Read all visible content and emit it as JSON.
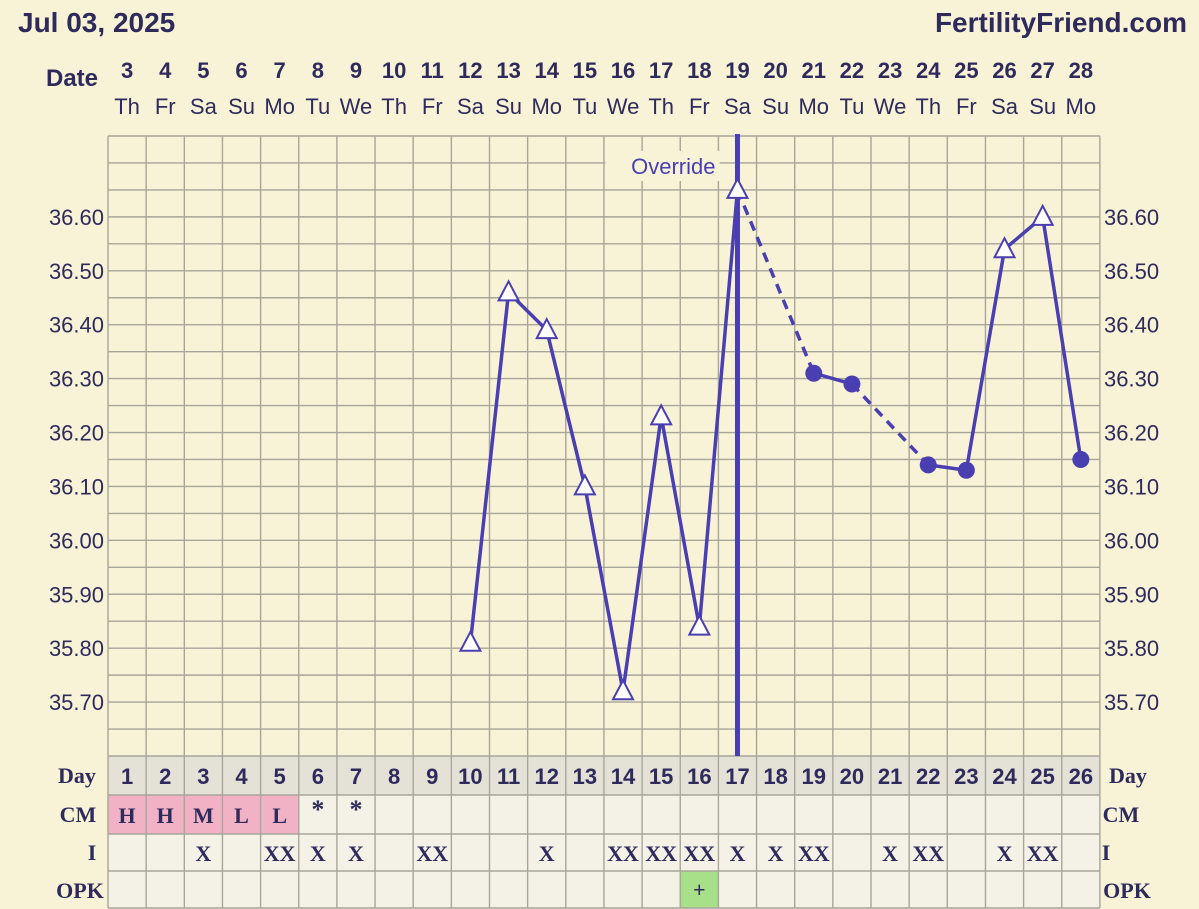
{
  "header": {
    "date": "Jul 03, 2025",
    "brand": "FertilityFriend.com"
  },
  "colors": {
    "background": "#f8f3d6",
    "grid": "#a8a59a",
    "line": "#4a3fb0",
    "text": "#2e2a5c",
    "cm_highlight": "#f0b2c4",
    "opk_positive": "#a8e08a",
    "cell_bg": "#f4f2e6"
  },
  "chart_data": {
    "type": "line",
    "y_axis": {
      "min": 35.6,
      "max": 36.75,
      "ticks": [
        "36.60",
        "36.50",
        "36.40",
        "36.30",
        "36.20",
        "36.10",
        "36.00",
        "35.90",
        "35.80",
        "35.70"
      ],
      "tick_values": [
        36.6,
        36.5,
        36.4,
        36.3,
        36.2,
        36.1,
        36.0,
        35.9,
        35.8,
        35.7
      ]
    },
    "row_labels": {
      "date": "Date",
      "day": "Day",
      "cm": "CM",
      "i": "I",
      "opk": "OPK"
    },
    "dates": [
      "3",
      "4",
      "5",
      "6",
      "7",
      "8",
      "9",
      "10",
      "11",
      "12",
      "13",
      "14",
      "15",
      "16",
      "17",
      "18",
      "19",
      "20",
      "21",
      "22",
      "23",
      "24",
      "25",
      "26",
      "27",
      "28"
    ],
    "weekdays": [
      "Th",
      "Fr",
      "Sa",
      "Su",
      "Mo",
      "Tu",
      "We",
      "Th",
      "Fr",
      "Sa",
      "Su",
      "Mo",
      "Tu",
      "We",
      "Th",
      "Fr",
      "Sa",
      "Su",
      "Mo",
      "Tu",
      "We",
      "Th",
      "Fr",
      "Sa",
      "Su",
      "Mo"
    ],
    "cycle_days": [
      "1",
      "2",
      "3",
      "4",
      "5",
      "6",
      "7",
      "8",
      "9",
      "10",
      "11",
      "12",
      "13",
      "14",
      "15",
      "16",
      "17",
      "18",
      "19",
      "20",
      "21",
      "22",
      "23",
      "24",
      "25",
      "26"
    ],
    "temperatures": [
      null,
      null,
      null,
      null,
      null,
      null,
      null,
      null,
      null,
      35.81,
      36.46,
      36.39,
      36.1,
      35.72,
      36.23,
      35.84,
      36.65,
      null,
      36.31,
      36.29,
      null,
      36.14,
      36.13,
      36.54,
      36.6,
      36.15
    ],
    "markers": [
      "",
      "",
      "",
      "",
      "",
      "",
      "",
      "",
      "",
      "triangle",
      "triangle",
      "triangle",
      "triangle",
      "triangle",
      "triangle",
      "triangle",
      "triangle",
      "",
      "dot",
      "dot",
      "",
      "dot",
      "dot",
      "triangle",
      "triangle",
      "dot"
    ],
    "segments": [
      {
        "from": 9,
        "to": 16,
        "style": "solid"
      },
      {
        "from": 16,
        "to": 18,
        "style": "dashed"
      },
      {
        "from": 18,
        "to": 19,
        "style": "solid"
      },
      {
        "from": 19,
        "to": 21,
        "style": "dashed"
      },
      {
        "from": 21,
        "to": 25,
        "style": "solid"
      }
    ],
    "ovulation_day_index": 16,
    "annotation": {
      "text": "Override",
      "day_index": 16
    },
    "cm": [
      "H",
      "H",
      "M",
      "L",
      "L",
      "*",
      "*",
      "",
      "",
      "",
      "",
      "",
      "",
      "",
      "",
      "",
      "",
      "",
      "",
      "",
      "",
      "",
      "",
      "",
      "",
      ""
    ],
    "cm_highlighted": [
      true,
      true,
      true,
      true,
      true,
      false,
      false,
      false,
      false,
      false,
      false,
      false,
      false,
      false,
      false,
      false,
      false,
      false,
      false,
      false,
      false,
      false,
      false,
      false,
      false,
      false
    ],
    "intercourse": [
      "",
      "",
      "X",
      "",
      "XX",
      "X",
      "X",
      "",
      "XX",
      "",
      "",
      "X",
      "",
      "XX",
      "XX",
      "XX",
      "X",
      "X",
      "XX",
      "",
      "X",
      "XX",
      "",
      "X",
      "XX",
      ""
    ],
    "opk": [
      "",
      "",
      "",
      "",
      "",
      "",
      "",
      "",
      "",
      "",
      "",
      "",
      "",
      "",
      "",
      "+",
      "",
      "",
      "",
      "",
      "",
      "",
      "",
      "",
      "",
      ""
    ]
  }
}
